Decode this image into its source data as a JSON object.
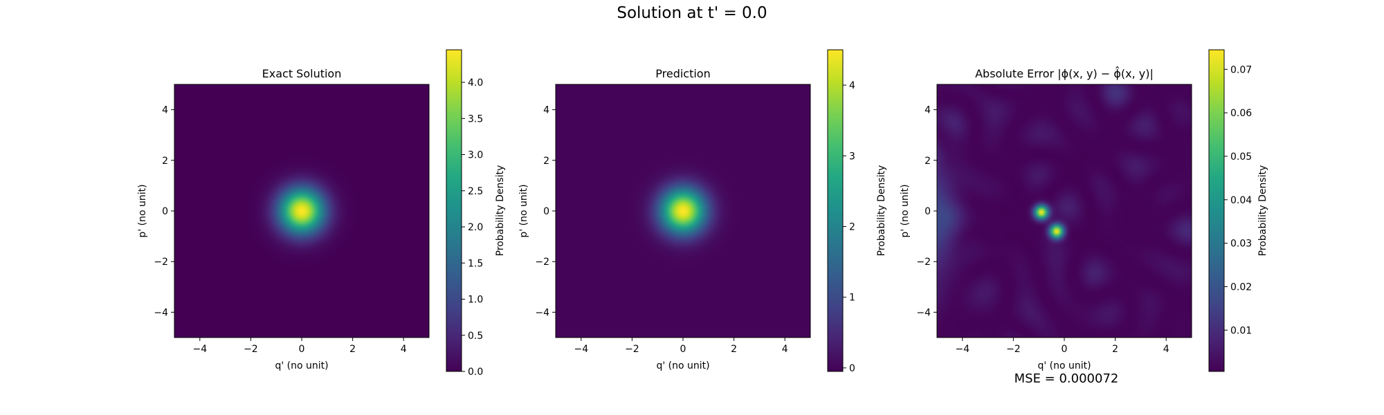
{
  "figure": {
    "suptitle": "Solution at t' = 0.0",
    "footnote": "MSE = 0.000072"
  },
  "chart_data": [
    {
      "type": "heatmap",
      "title": "Exact Solution",
      "xlabel": "q' (no unit)",
      "ylabel": "p' (no unit)",
      "xlim": [
        -5,
        5
      ],
      "ylim": [
        -5,
        5
      ],
      "xticks": [
        "−4",
        "−2",
        "0",
        "2",
        "4"
      ],
      "yticks": [
        "−4",
        "−2",
        "0",
        "2",
        "4"
      ],
      "field": "gaussian",
      "center": [
        0,
        0
      ],
      "peak": 4.45,
      "colorbar": {
        "label": "Probability Density",
        "range": [
          0,
          4.45
        ],
        "ticks": [
          0.0,
          0.5,
          1.0,
          1.5,
          2.0,
          2.5,
          3.0,
          3.5,
          4.0
        ],
        "ticklabels": [
          "0.0",
          "0.5",
          "1.0",
          "1.5",
          "2.0",
          "2.5",
          "3.0",
          "3.5",
          "4.0"
        ]
      }
    },
    {
      "type": "heatmap",
      "title": "Prediction",
      "xlabel": "q' (no unit)",
      "ylabel": "p' (no unit)",
      "xlim": [
        -5,
        5
      ],
      "ylim": [
        -5,
        5
      ],
      "xticks": [
        "−4",
        "−2",
        "0",
        "2",
        "4"
      ],
      "yticks": [
        "−4",
        "−2",
        "0",
        "2",
        "4"
      ],
      "field": "gaussian",
      "center": [
        0,
        0
      ],
      "peak": 4.5,
      "colorbar": {
        "label": "Probability Density",
        "range": [
          -0.05,
          4.5
        ],
        "ticks": [
          0,
          1,
          2,
          3,
          4
        ],
        "ticklabels": [
          "0",
          "1",
          "2",
          "3",
          "4"
        ]
      }
    },
    {
      "type": "heatmap",
      "title": "Absolute Error |ϕ(x, y) − ϕ̂(x, y)|",
      "xlabel": "q' (no unit)",
      "ylabel": "p' (no unit)",
      "xlim": [
        -5,
        5
      ],
      "ylim": [
        -5,
        5
      ],
      "xticks": [
        "−4",
        "−2",
        "0",
        "2",
        "4"
      ],
      "yticks": [
        "−4",
        "−2",
        "0",
        "2",
        "4"
      ],
      "field": "error",
      "hotspots": [
        [
          -0.9,
          -0.05,
          0.074
        ],
        [
          -0.3,
          -0.8,
          0.074
        ]
      ],
      "colorbar": {
        "label": "Probability Density",
        "range": [
          0.0005,
          0.0745
        ],
        "ticks": [
          0.01,
          0.02,
          0.03,
          0.04,
          0.05,
          0.06,
          0.07
        ],
        "ticklabels": [
          "0.01",
          "0.02",
          "0.03",
          "0.04",
          "0.05",
          "0.06",
          "0.07"
        ]
      }
    }
  ]
}
